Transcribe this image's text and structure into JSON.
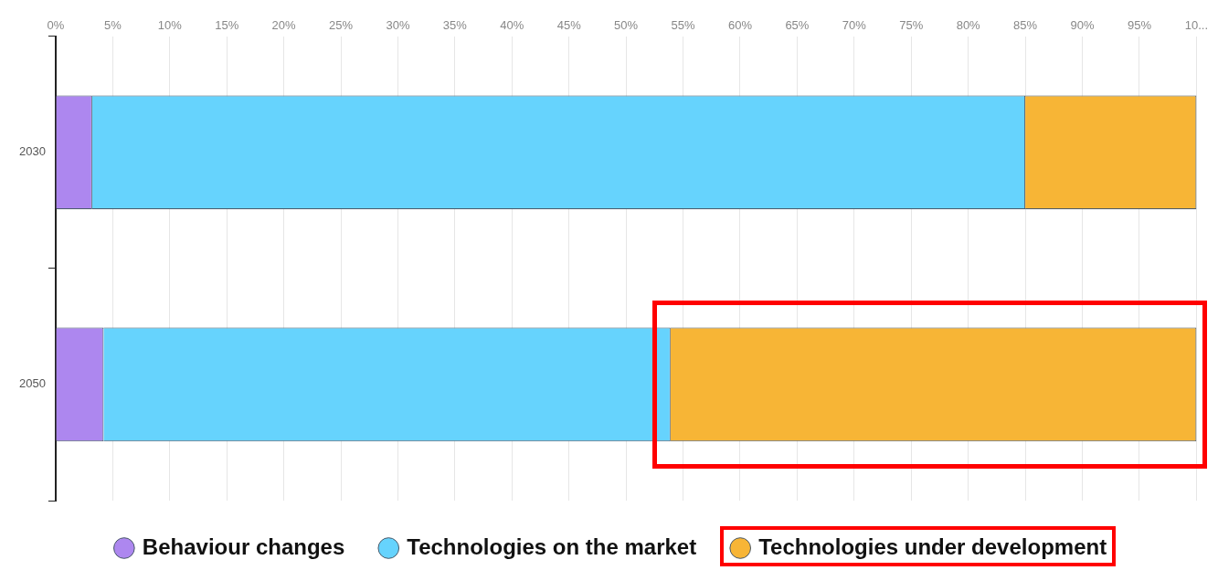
{
  "chart_data": {
    "type": "bar",
    "orientation": "horizontal",
    "stacked": true,
    "categories": [
      "2030",
      "2050"
    ],
    "series": [
      {
        "name": "Behaviour changes",
        "color": "#ad87ef",
        "values": [
          3.2,
          4.2
        ]
      },
      {
        "name": "Technologies on the market",
        "color": "#66d3fd",
        "values": [
          81.8,
          49.7
        ]
      },
      {
        "name": "Technologies under development",
        "color": "#f7b536",
        "values": [
          15,
          46.1
        ]
      }
    ],
    "xlim": [
      0,
      100
    ],
    "xticks": [
      {
        "value": 0,
        "label": "0%"
      },
      {
        "value": 5,
        "label": "5%"
      },
      {
        "value": 10,
        "label": "10%"
      },
      {
        "value": 15,
        "label": "15%"
      },
      {
        "value": 20,
        "label": "20%"
      },
      {
        "value": 25,
        "label": "25%"
      },
      {
        "value": 30,
        "label": "30%"
      },
      {
        "value": 35,
        "label": "35%"
      },
      {
        "value": 40,
        "label": "40%"
      },
      {
        "value": 45,
        "label": "45%"
      },
      {
        "value": 50,
        "label": "50%"
      },
      {
        "value": 55,
        "label": "55%"
      },
      {
        "value": 60,
        "label": "60%"
      },
      {
        "value": 65,
        "label": "65%"
      },
      {
        "value": 70,
        "label": "70%"
      },
      {
        "value": 75,
        "label": "75%"
      },
      {
        "value": 80,
        "label": "80%"
      },
      {
        "value": 85,
        "label": "85%"
      },
      {
        "value": 90,
        "label": "90%"
      },
      {
        "value": 95,
        "label": "95%"
      },
      {
        "value": 100,
        "label": "10..."
      }
    ],
    "grid": "x",
    "legend": "bottom"
  }
}
